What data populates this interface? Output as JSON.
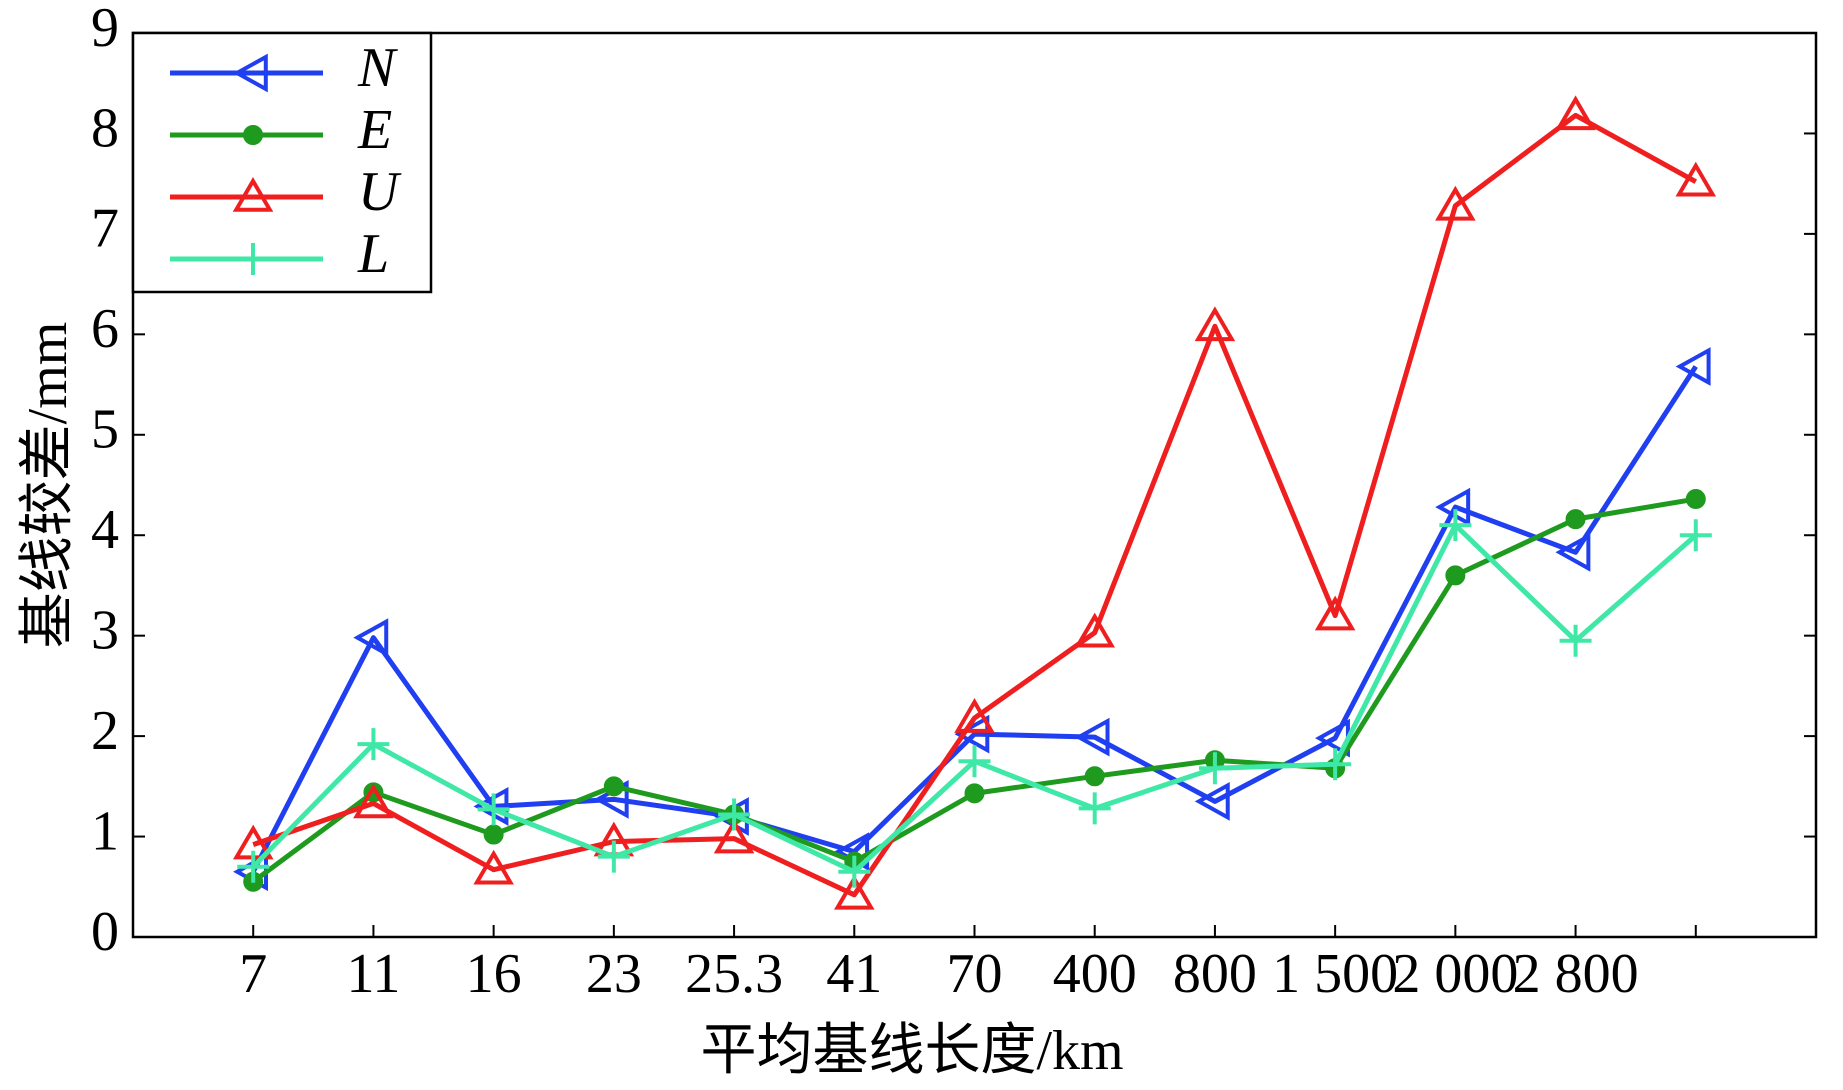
{
  "chart_data": {
    "type": "line",
    "xlabel": "平均基线长度/km",
    "ylabel": "基线较差/mm",
    "categories": [
      "7",
      "11",
      "16",
      "23",
      "25.3",
      "41",
      "70",
      "400",
      "800",
      "1 500",
      "2 000",
      "2 800",
      null
    ],
    "ylim": [
      0,
      9
    ],
    "yticks": [
      0,
      1,
      2,
      3,
      4,
      5,
      6,
      7,
      8,
      9
    ],
    "legend": "upper-left",
    "series": [
      {
        "name": "N",
        "color": "#1f3ff0",
        "marker": "triangle-left",
        "values": [
          0.65,
          2.98,
          1.3,
          1.37,
          1.2,
          0.85,
          2.02,
          1.99,
          1.35,
          1.98,
          4.28,
          3.83,
          5.68
        ]
      },
      {
        "name": "E",
        "color": "#1e9a1e",
        "marker": "circle",
        "values": [
          0.55,
          1.44,
          1.02,
          1.5,
          1.22,
          0.75,
          1.43,
          1.6,
          1.76,
          1.68,
          3.6,
          4.16,
          4.36
        ]
      },
      {
        "name": "U",
        "color": "#f01f1f",
        "marker": "triangle-up",
        "values": [
          0.92,
          1.33,
          0.67,
          0.95,
          0.98,
          0.42,
          2.18,
          3.03,
          6.08,
          3.2,
          7.28,
          8.18,
          7.52
        ]
      },
      {
        "name": "L",
        "color": "#40e8a8",
        "marker": "plus",
        "values": [
          0.7,
          1.92,
          1.27,
          0.8,
          1.22,
          0.65,
          1.75,
          1.28,
          1.68,
          1.72,
          4.1,
          2.95,
          4.0
        ]
      }
    ]
  }
}
